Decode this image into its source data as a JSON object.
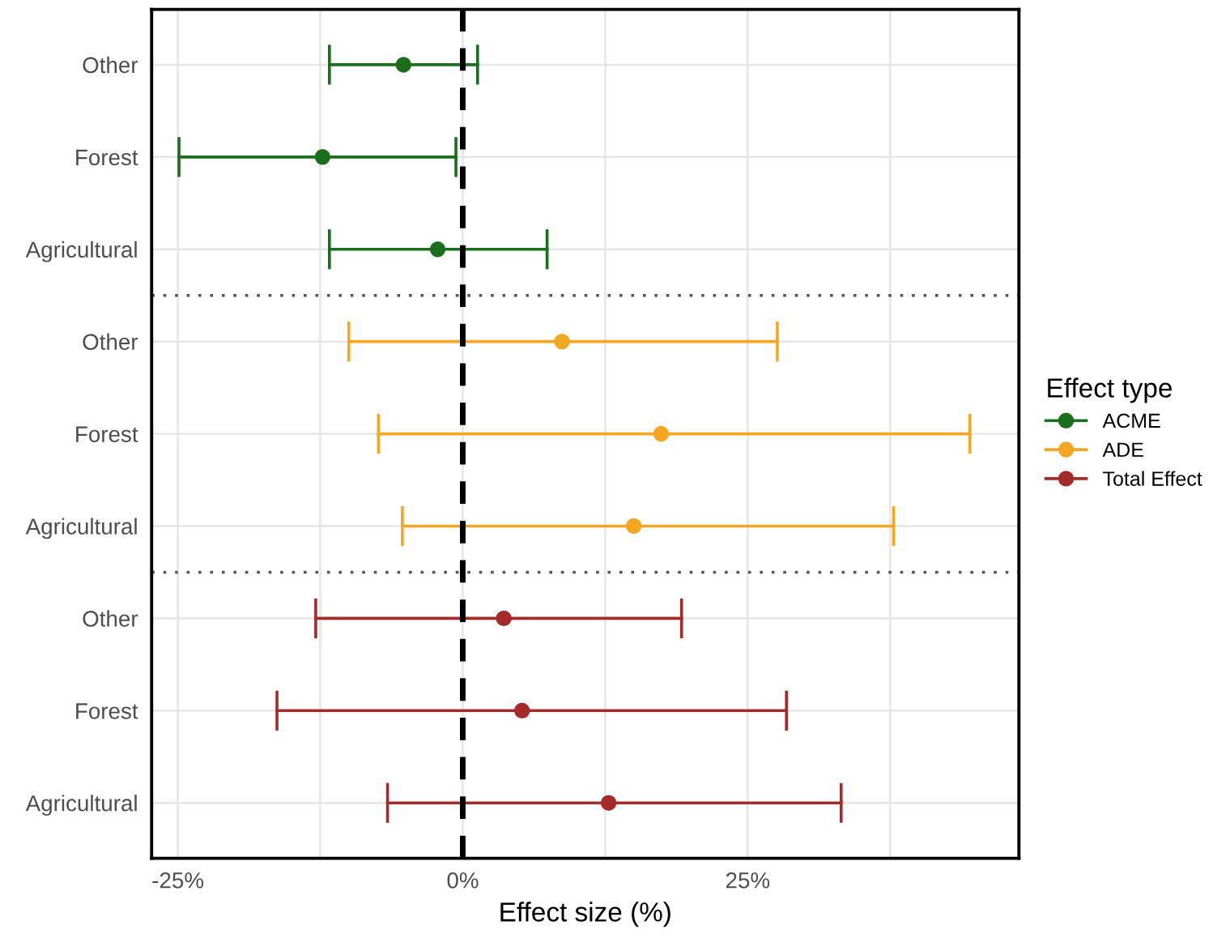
{
  "chart_data": {
    "type": "scatter",
    "orientation": "horizontal",
    "xlabel": "Effect size (%)",
    "legend_title": "Effect type",
    "legend": "right",
    "grid": true,
    "marker": "circle",
    "categories": [
      "Other",
      "Forest",
      "Agricultural",
      "Other",
      "Forest",
      "Agricultural",
      "Other",
      "Forest",
      "Agricultural"
    ],
    "xlim": [
      -27.3,
      48.8
    ],
    "xticks": [
      {
        "value": -25,
        "label": "-25%"
      },
      {
        "value": -12.5,
        "label": null
      },
      {
        "value": 0,
        "label": "0%"
      },
      {
        "value": 12.5,
        "label": null
      },
      {
        "value": 25,
        "label": "25%"
      },
      {
        "value": 37.5,
        "label": null
      }
    ],
    "series": [
      {
        "name": "ACME",
        "color": "#1b6e1b",
        "values": [
          -5.2,
          -12.3,
          -2.2,
          null,
          null,
          null,
          null,
          null,
          null
        ],
        "errors": [
          [
            -11.7,
            1.3
          ],
          [
            -24.9,
            -0.6
          ],
          [
            -11.7,
            7.4
          ],
          null,
          null,
          null,
          null,
          null,
          null
        ]
      },
      {
        "name": "ADE",
        "color": "#f5a623",
        "values": [
          null,
          null,
          null,
          8.7,
          17.4,
          15.0,
          null,
          null,
          null
        ],
        "errors": [
          null,
          null,
          null,
          [
            -10.0,
            27.6
          ],
          [
            -7.4,
            44.5
          ],
          [
            -5.3,
            37.8
          ],
          null,
          null,
          null
        ]
      },
      {
        "name": "Total Effect",
        "color": "#a52a2a",
        "values": [
          null,
          null,
          null,
          null,
          null,
          null,
          3.6,
          5.2,
          12.8
        ],
        "errors": [
          null,
          null,
          null,
          null,
          null,
          null,
          [
            -12.9,
            19.2
          ],
          [
            -16.3,
            28.4
          ],
          [
            -6.6,
            33.2
          ]
        ]
      }
    ],
    "ref_lines": [
      {
        "axis": "x",
        "value": 0,
        "color": "#000000",
        "line_style": "dashed"
      }
    ]
  }
}
